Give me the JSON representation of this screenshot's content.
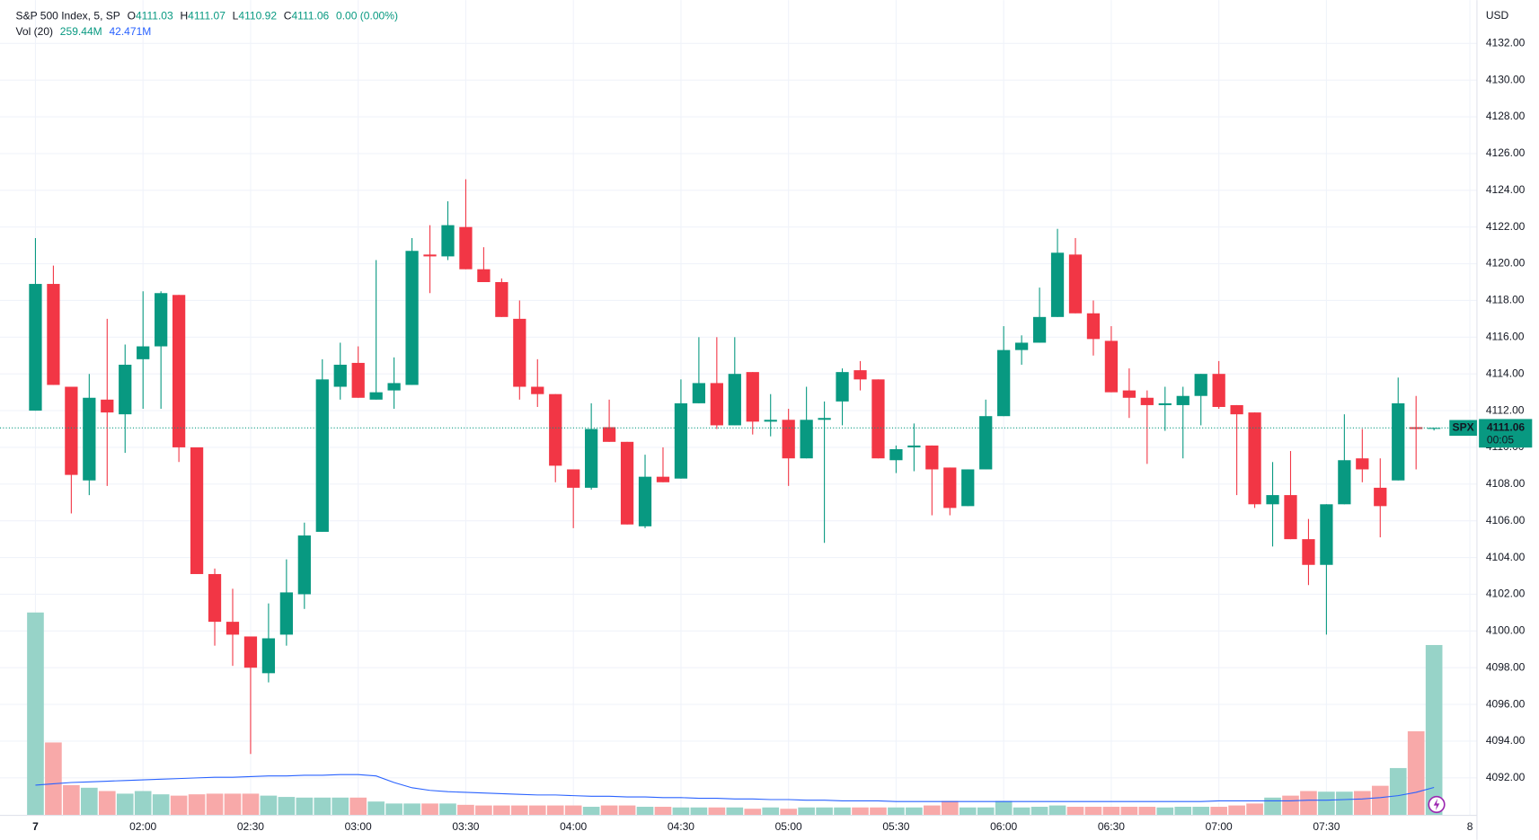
{
  "chart_data": {
    "type": "candlestick",
    "title": "S&P 500 Index, 5, SP",
    "currency": "USD",
    "ohlc_labels": [
      "O",
      "H",
      "L",
      "C"
    ],
    "change_label": "0.00 (0.00%)",
    "volume_indicator": "Vol (20)",
    "volume_label": "259.44M",
    "volume_ma_label": "42.471M",
    "symbol": "SPX",
    "countdown": "00:05",
    "up_color": "#089981",
    "down_color": "#f23645",
    "up_volume_color": "#97d3c8",
    "down_volume_color": "#f8a9a9",
    "ma_color": "#2962ff",
    "grid": true,
    "open": [
      4112,
      4118.9,
      4113.3,
      4108.2,
      4112.6,
      4111.8,
      4114.8,
      4115.5,
      4118.3,
      4110,
      4103.1,
      4100.5,
      4099.7,
      4097.7,
      4099.8,
      4102,
      4105.4,
      4113.3,
      4114.6,
      4112.6,
      4113.1,
      4113.4,
      4120.5,
      4120.4,
      4122,
      4119.7,
      4119,
      4117,
      4113.3,
      4112.9,
      4108.8,
      4107.8,
      4111.1,
      4110.3,
      4105.7,
      4108.4,
      4108.3,
      4112.4,
      4113.5,
      4111.2,
      4114.1,
      4111.4,
      4111.5,
      4109.4,
      4111.5,
      4112.5,
      4114.2,
      4113.7,
      4109.3,
      4110,
      4110.1,
      4108.9,
      4106.8,
      4108.8,
      4111.7,
      4115.3,
      4115.7,
      4117.1,
      4120.5,
      4117.3,
      4115.8,
      4113.1,
      4112.7,
      4112.3,
      4112.3,
      4112.8,
      4114,
      4112.3,
      4111.9,
      4106.9,
      4107.4,
      4105,
      4103.6,
      4106.9,
      4109.4,
      4107.8,
      4108.2,
      4111.1,
      4111.03
    ],
    "high": [
      4121.4,
      4119.9,
      4113.3,
      4114,
      4117,
      4115.6,
      4118.5,
      4118.5,
      4118.3,
      4110,
      4103.4,
      4102.3,
      4099.7,
      4101.5,
      4103.9,
      4105.9,
      4114.8,
      4115.7,
      4115.5,
      4120.2,
      4114.9,
      4121.4,
      4122.1,
      4123.4,
      4124.6,
      4120.9,
      4119.2,
      4118,
      4114.8,
      4112.9,
      4108.8,
      4112.4,
      4112.6,
      4110.3,
      4109.6,
      4110,
      4113.7,
      4116,
      4116,
      4116,
      4114.1,
      4112.9,
      4112.1,
      4113.3,
      4112.5,
      4114.3,
      4114.7,
      4113.7,
      4110.1,
      4111.3,
      4110.1,
      4108.9,
      4108.8,
      4112.6,
      4116.6,
      4116.1,
      4118.7,
      4121.9,
      4121.4,
      4118,
      4116.6,
      4114.3,
      4113.1,
      4113.3,
      4113.3,
      4114,
      4114.7,
      4112.3,
      4111.9,
      4109.2,
      4109.8,
      4106.1,
      4106.9,
      4111.8,
      4111,
      4109.4,
      4113.8,
      4112.8,
      4111.07
    ],
    "low": [
      4112,
      4113.4,
      4106.4,
      4107.4,
      4107.9,
      4109.7,
      4112.1,
      4112.1,
      4109.2,
      4103.1,
      4099.2,
      4098.1,
      4093.3,
      4097.2,
      4099.2,
      4101.2,
      4105.4,
      4112.6,
      4112.7,
      4112.6,
      4112.1,
      4113.4,
      4118.4,
      4120.2,
      4119.7,
      4119,
      4117.1,
      4112.6,
      4112.2,
      4108.1,
      4105.6,
      4107.7,
      4110.3,
      4105.8,
      4105.6,
      4108.1,
      4108.3,
      4112.4,
      4111,
      4111.2,
      4110.7,
      4110.6,
      4107.9,
      4109.4,
      4104.8,
      4111.2,
      4113.1,
      4109.4,
      4108.6,
      4108.7,
      4106.3,
      4106.3,
      4106.8,
      4108.8,
      4111.7,
      4114.5,
      4115.7,
      4117.1,
      4117.3,
      4115,
      4113,
      4111.6,
      4109.1,
      4110.9,
      4109.4,
      4111.2,
      4112.1,
      4107.4,
      4106.7,
      4104.6,
      4105,
      4102.5,
      4099.8,
      4106.9,
      4108.1,
      4105.1,
      4108.2,
      4108.8,
      4110.92
    ],
    "close": [
      4118.9,
      4113.4,
      4108.5,
      4112.7,
      4111.9,
      4114.5,
      4115.5,
      4118.4,
      4110,
      4103.1,
      4100.5,
      4099.8,
      4098,
      4099.6,
      4102.1,
      4105.2,
      4113.7,
      4114.5,
      4112.7,
      4113,
      4113.5,
      4120.7,
      4120.4,
      4122.1,
      4119.7,
      4119,
      4117.1,
      4113.3,
      4112.9,
      4109,
      4107.8,
      4111,
      4110.3,
      4105.8,
      4108.4,
      4108.1,
      4112.4,
      4113.5,
      4111.2,
      4114,
      4111.4,
      4111.5,
      4109.4,
      4111.5,
      4111.6,
      4114.1,
      4113.7,
      4109.4,
      4109.9,
      4110.1,
      4108.8,
      4106.7,
      4108.8,
      4111.7,
      4115.3,
      4115.7,
      4117.1,
      4120.6,
      4117.3,
      4115.9,
      4113,
      4112.7,
      4112.3,
      4112.4,
      4112.8,
      4114,
      4112.2,
      4111.8,
      4106.9,
      4107.4,
      4105,
      4103.6,
      4106.9,
      4109.3,
      4108.8,
      4106.8,
      4112.4,
      4111,
      4111.06
    ],
    "volume": [
      309,
      111,
      46,
      42,
      37,
      33,
      37,
      32,
      30,
      32,
      33,
      33,
      33,
      30,
      28,
      27,
      27,
      27,
      27,
      21,
      18,
      18,
      18,
      18,
      16,
      15,
      15,
      15,
      15,
      15,
      15,
      13,
      15,
      15,
      13,
      13,
      12,
      12,
      12,
      12,
      10,
      12,
      10,
      12,
      12,
      12,
      12,
      12,
      12,
      12,
      15,
      22,
      12,
      12,
      22,
      12,
      13,
      15,
      13,
      13,
      13,
      13,
      13,
      12,
      13,
      13,
      13,
      15,
      18,
      27,
      30,
      37,
      36,
      36,
      37,
      45,
      72,
      128,
      259.44
    ],
    "volume_ma": [
      46,
      48,
      50,
      51,
      52,
      53,
      54,
      55,
      56,
      57,
      58,
      58,
      59,
      60,
      60,
      61,
      61,
      62,
      62,
      60,
      50,
      42,
      38,
      36,
      35,
      34,
      33,
      32,
      31,
      31,
      30,
      29,
      29,
      28,
      28,
      27,
      27,
      26,
      26,
      25,
      25,
      24,
      24,
      23,
      23,
      22,
      22,
      22,
      21,
      21,
      21,
      21,
      21,
      21,
      21,
      21,
      21,
      21,
      21,
      21,
      21,
      21,
      21,
      21,
      21,
      21,
      22,
      22,
      22,
      22,
      22,
      23,
      23,
      24,
      25,
      27,
      30,
      35,
      42.471
    ],
    "ylim": [
      4089.96,
      4134.36
    ],
    "volume_ylim": [
      0,
      1242
    ],
    "yticks": [
      {
        "value": 4092,
        "label": "4092.00"
      },
      {
        "value": 4094,
        "label": "4094.00"
      },
      {
        "value": 4096,
        "label": "4096.00"
      },
      {
        "value": 4098,
        "label": "4098.00"
      },
      {
        "value": 4100,
        "label": "4100.00"
      },
      {
        "value": 4102,
        "label": "4102.00"
      },
      {
        "value": 4104,
        "label": "4104.00"
      },
      {
        "value": 4106,
        "label": "4106.00"
      },
      {
        "value": 4108,
        "label": "4108.00"
      },
      {
        "value": 4110,
        "label": "4110.00"
      },
      {
        "value": 4112,
        "label": "4112.00"
      },
      {
        "value": 4114,
        "label": "4114.00"
      },
      {
        "value": 4116,
        "label": "4116.00"
      },
      {
        "value": 4118,
        "label": "4118.00"
      },
      {
        "value": 4120,
        "label": "4120.00"
      },
      {
        "value": 4122,
        "label": "4122.00"
      },
      {
        "value": 4124,
        "label": "4124.00"
      },
      {
        "value": 4126,
        "label": "4126.00"
      },
      {
        "value": 4128,
        "label": "4128.00"
      },
      {
        "value": 4130,
        "label": "4130.00"
      },
      {
        "value": 4132,
        "label": "4132.00"
      }
    ],
    "xticks": [
      {
        "value": 0,
        "label": "7"
      },
      {
        "value": 6,
        "label": "02:00"
      },
      {
        "value": 12,
        "label": "02:30"
      },
      {
        "value": 18,
        "label": "03:00"
      },
      {
        "value": 24,
        "label": "03:30"
      },
      {
        "value": 30,
        "label": "04:00"
      },
      {
        "value": 36,
        "label": "04:30"
      },
      {
        "value": 42,
        "label": "05:00"
      },
      {
        "value": 48,
        "label": "05:30"
      },
      {
        "value": 54,
        "label": "06:00"
      },
      {
        "value": 60,
        "label": "06:30"
      },
      {
        "value": 66,
        "label": "07:00"
      },
      {
        "value": 72,
        "label": "07:30"
      },
      {
        "value": 80,
        "label": "8"
      }
    ]
  }
}
